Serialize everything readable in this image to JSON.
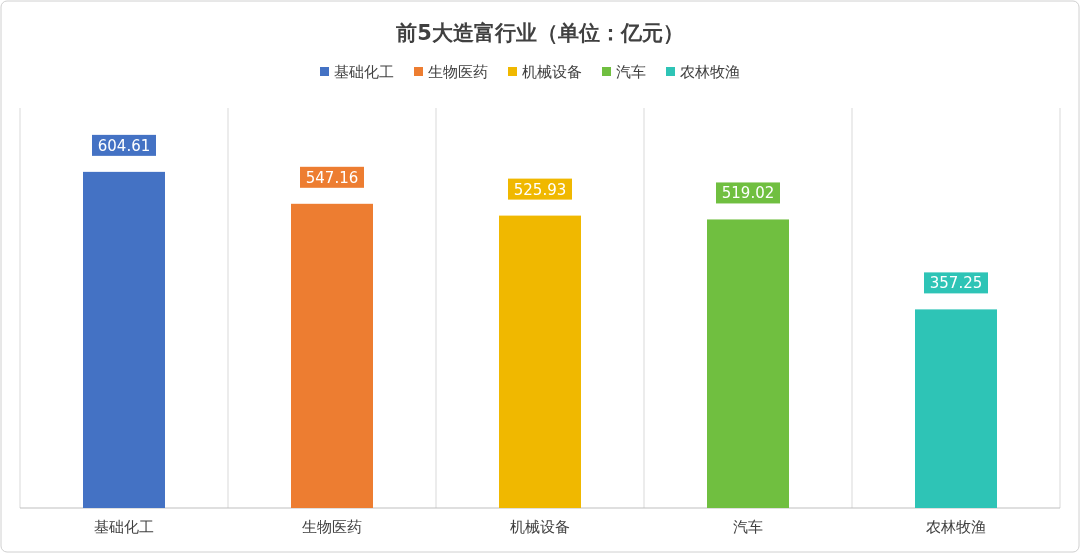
{
  "chart_data": {
    "type": "bar",
    "title": "前5大造富行业（单位：亿元）",
    "categories": [
      "基础化工",
      "生物医药",
      "机械设备",
      "汽车",
      "农林牧渔"
    ],
    "series": [
      {
        "name": "基础化工",
        "color": "#4472c4",
        "values": [
          604.61,
          null,
          null,
          null,
          null
        ]
      },
      {
        "name": "生物医药",
        "color": "#ed7d31",
        "values": [
          null,
          547.16,
          null,
          null,
          null
        ]
      },
      {
        "name": "机械设备",
        "color": "#f0b800",
        "values": [
          null,
          null,
          525.93,
          null,
          null
        ]
      },
      {
        "name": "汽车",
        "color": "#70bf40",
        "values": [
          null,
          null,
          null,
          519.02,
          null
        ]
      },
      {
        "name": "农林牧渔",
        "color": "#2ec4b6",
        "values": [
          null,
          null,
          null,
          null,
          357.25
        ]
      }
    ],
    "tick_labels": "x",
    "grid": "x",
    "legend": "top",
    "data_labels": true
  }
}
